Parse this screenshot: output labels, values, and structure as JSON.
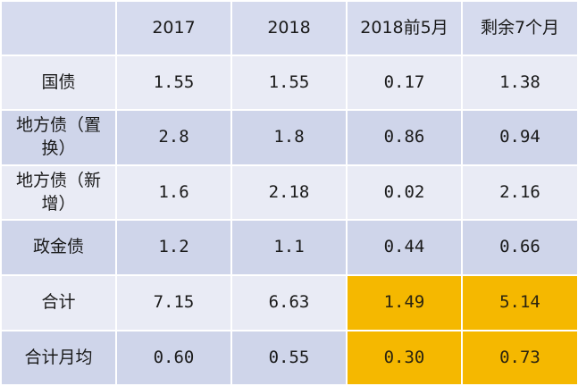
{
  "chart_data": {
    "type": "table",
    "columns": [
      "",
      "2017",
      "2018",
      "2018前5月",
      "剩余7个月"
    ],
    "rows": [
      {
        "label": "国债",
        "values": [
          "1.55",
          "1.55",
          "0.17",
          "1.38"
        ]
      },
      {
        "label": "地方债（置换）",
        "values": [
          "2.8",
          "1.8",
          "0.86",
          "0.94"
        ]
      },
      {
        "label": "地方债（新增）",
        "values": [
          "1.6",
          "2.18",
          "0.02",
          "2.16"
        ]
      },
      {
        "label": "政金债",
        "values": [
          "1.2",
          "1.1",
          "0.44",
          "0.66"
        ]
      },
      {
        "label": "合计",
        "values": [
          "7.15",
          "6.63",
          "1.49",
          "5.14"
        ]
      },
      {
        "label": "合计月均",
        "values": [
          "0.60",
          "0.55",
          "0.30",
          "0.73"
        ]
      }
    ],
    "highlight_color": "#f5b800",
    "band_colors": [
      "#cfd5ea",
      "#e9ebf5"
    ],
    "header_color": "#d6dbee"
  }
}
